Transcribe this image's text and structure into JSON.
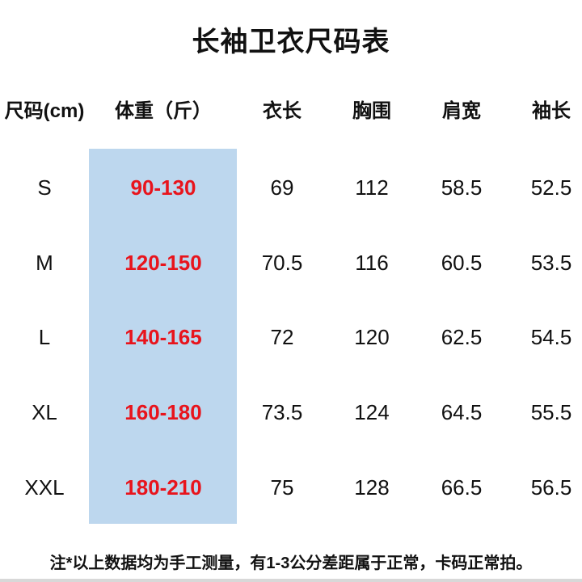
{
  "title": "长袖卫衣尺码表",
  "colors": {
    "weight_band": "#bdd7ee",
    "weight_text": "#e8141c"
  },
  "headers": [
    "尺码(cm)",
    "体重（斤）",
    "衣长",
    "胸围",
    "肩宽",
    "袖长"
  ],
  "rows": [
    [
      "S",
      "90-130",
      "69",
      "112",
      "58.5",
      "52.5"
    ],
    [
      "M",
      "120-150",
      "70.5",
      "116",
      "60.5",
      "53.5"
    ],
    [
      "L",
      "140-165",
      "72",
      "120",
      "62.5",
      "54.5"
    ],
    [
      "XL",
      "160-180",
      "73.5",
      "124",
      "64.5",
      "55.5"
    ],
    [
      "XXL",
      "180-210",
      "75",
      "128",
      "66.5",
      "56.5"
    ]
  ],
  "note": "注*以上数据均为手工测量，有1-3公分差距属于正常，卡码正常拍。"
}
